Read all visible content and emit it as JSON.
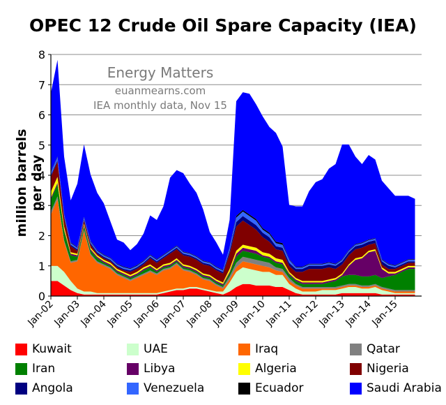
{
  "chart_data": {
    "type": "area",
    "stacked": true,
    "title": "OPEC 12 Crude Oil Spare Capacity (IEA)",
    "ylabel": "million barrels per day",
    "xlabel": "",
    "ylim": [
      0,
      8
    ],
    "yticks": [
      "0",
      "1",
      "2",
      "3",
      "4",
      "5",
      "6",
      "7",
      "8"
    ],
    "xticks": [
      "Jan-02",
      "Jan-03",
      "Jan-04",
      "Jan-05",
      "Jan-06",
      "Jan-07",
      "Jan-08",
      "Jan-09",
      "Jan-10",
      "Jan-11",
      "Jan-12",
      "Jan-13",
      "Jan-14",
      "Jan-15"
    ],
    "grid": true,
    "legend_position": "bottom",
    "annotations": [
      "Energy Matters",
      "euanmearns.com",
      "IEA monthly data, Nov 15"
    ],
    "x": [
      2002.0,
      2002.25,
      2002.5,
      2002.75,
      2003.0,
      2003.25,
      2003.5,
      2003.75,
      2004.0,
      2004.25,
      2004.5,
      2004.75,
      2005.0,
      2005.25,
      2005.5,
      2005.75,
      2006.0,
      2006.25,
      2006.5,
      2006.75,
      2007.0,
      2007.25,
      2007.5,
      2007.75,
      2008.0,
      2008.25,
      2008.5,
      2008.75,
      2009.0,
      2009.25,
      2009.5,
      2009.75,
      2010.0,
      2010.25,
      2010.5,
      2010.75,
      2011.0,
      2011.25,
      2011.5,
      2011.75,
      2012.0,
      2012.25,
      2012.5,
      2012.75,
      2013.0,
      2013.25,
      2013.5,
      2013.75,
      2014.0,
      2014.25,
      2014.5,
      2014.75,
      2015.0,
      2015.25,
      2015.5,
      2015.75
    ],
    "series": [
      {
        "name": "Kuwait",
        "color": "#ff0000",
        "values": [
          0.5,
          0.5,
          0.35,
          0.2,
          0.1,
          0.05,
          0.05,
          0.05,
          0.05,
          0.05,
          0.05,
          0.05,
          0.05,
          0.05,
          0.05,
          0.05,
          0.05,
          0.1,
          0.15,
          0.2,
          0.2,
          0.25,
          0.25,
          0.2,
          0.15,
          0.1,
          0.05,
          0.15,
          0.3,
          0.4,
          0.4,
          0.35,
          0.35,
          0.35,
          0.3,
          0.3,
          0.2,
          0.1,
          0.05,
          0.05,
          0.05,
          0.05,
          0.05,
          0.05,
          0.1,
          0.1,
          0.1,
          0.1,
          0.1,
          0.1,
          0.05,
          0.05,
          0.05,
          0.05,
          0.05,
          0.05
        ]
      },
      {
        "name": "UAE",
        "color": "#ccffcc",
        "values": [
          0.5,
          0.5,
          0.45,
          0.3,
          0.15,
          0.1,
          0.1,
          0.05,
          0.05,
          0.05,
          0.05,
          0.05,
          0.05,
          0.05,
          0.05,
          0.05,
          0.05,
          0.05,
          0.05,
          0.05,
          0.05,
          0.05,
          0.05,
          0.05,
          0.05,
          0.05,
          0.1,
          0.3,
          0.5,
          0.55,
          0.5,
          0.5,
          0.45,
          0.45,
          0.4,
          0.4,
          0.2,
          0.15,
          0.1,
          0.1,
          0.1,
          0.15,
          0.15,
          0.15,
          0.15,
          0.2,
          0.2,
          0.15,
          0.15,
          0.2,
          0.15,
          0.1,
          0.05,
          0.05,
          0.05,
          0.05
        ]
      },
      {
        "name": "Iraq",
        "color": "#ff6600",
        "values": [
          1.7,
          2.2,
          1.0,
          0.6,
          0.9,
          2.0,
          1.2,
          1.0,
          0.9,
          0.8,
          0.6,
          0.5,
          0.4,
          0.5,
          0.6,
          0.7,
          0.6,
          0.7,
          0.7,
          0.8,
          0.6,
          0.5,
          0.4,
          0.3,
          0.3,
          0.2,
          0.1,
          0.1,
          0.15,
          0.2,
          0.2,
          0.2,
          0.2,
          0.15,
          0.15,
          0.1,
          0.1,
          0.1,
          0.1,
          0.1,
          0.1,
          0.05,
          0.05,
          0.05,
          0.05,
          0.05,
          0.05,
          0.05,
          0.05,
          0.05,
          0.05,
          0.05,
          0.05,
          0.05,
          0.05,
          0.05
        ]
      },
      {
        "name": "Qatar",
        "color": "#808080",
        "values": [
          0.1,
          0.1,
          0.05,
          0.05,
          0.05,
          0.05,
          0.05,
          0.05,
          0.05,
          0.05,
          0.05,
          0.05,
          0.05,
          0.05,
          0.05,
          0.05,
          0.05,
          0.05,
          0.05,
          0.05,
          0.05,
          0.05,
          0.05,
          0.05,
          0.05,
          0.05,
          0.05,
          0.1,
          0.15,
          0.15,
          0.15,
          0.15,
          0.15,
          0.15,
          0.1,
          0.1,
          0.1,
          0.05,
          0.05,
          0.05,
          0.05,
          0.05,
          0.05,
          0.05,
          0.05,
          0.05,
          0.05,
          0.05,
          0.05,
          0.05,
          0.05,
          0.05,
          0.05,
          0.05,
          0.05,
          0.05
        ]
      },
      {
        "name": "Iran",
        "color": "#008000",
        "values": [
          0.4,
          0.4,
          0.3,
          0.2,
          0.1,
          0.1,
          0.1,
          0.1,
          0.05,
          0.05,
          0.05,
          0.05,
          0.05,
          0.05,
          0.1,
          0.1,
          0.05,
          0.05,
          0.05,
          0.05,
          0.05,
          0.05,
          0.05,
          0.05,
          0.05,
          0.05,
          0.05,
          0.1,
          0.2,
          0.2,
          0.2,
          0.2,
          0.15,
          0.15,
          0.15,
          0.15,
          0.1,
          0.1,
          0.1,
          0.1,
          0.1,
          0.1,
          0.15,
          0.2,
          0.3,
          0.3,
          0.3,
          0.3,
          0.3,
          0.3,
          0.3,
          0.4,
          0.5,
          0.6,
          0.7,
          0.7
        ]
      },
      {
        "name": "Libya",
        "color": "#660066",
        "values": [
          0.05,
          0.05,
          0.05,
          0.05,
          0.05,
          0.05,
          0.05,
          0.05,
          0.05,
          0.05,
          0.05,
          0.05,
          0.05,
          0.05,
          0.05,
          0.05,
          0.05,
          0.05,
          0.05,
          0.05,
          0.05,
          0.05,
          0.05,
          0.05,
          0.05,
          0.05,
          0.05,
          0.05,
          0.1,
          0.1,
          0.1,
          0.1,
          0.05,
          0.05,
          0.05,
          0.05,
          0.05,
          0.05,
          0.05,
          0.05,
          0.05,
          0.05,
          0.05,
          0.05,
          0.05,
          0.3,
          0.5,
          0.6,
          0.8,
          0.8,
          0.3,
          0.1,
          0.05,
          0.05,
          0.05,
          0.05
        ]
      },
      {
        "name": "Algeria",
        "color": "#ffff00",
        "values": [
          0.2,
          0.2,
          0.1,
          0.05,
          0.05,
          0.05,
          0.05,
          0.05,
          0.05,
          0.05,
          0.05,
          0.05,
          0.05,
          0.05,
          0.05,
          0.05,
          0.05,
          0.05,
          0.05,
          0.05,
          0.05,
          0.05,
          0.05,
          0.05,
          0.05,
          0.05,
          0.05,
          0.1,
          0.1,
          0.1,
          0.1,
          0.1,
          0.1,
          0.1,
          0.1,
          0.1,
          0.05,
          0.05,
          0.05,
          0.05,
          0.05,
          0.05,
          0.05,
          0.05,
          0.05,
          0.05,
          0.05,
          0.05,
          0.05,
          0.05,
          0.05,
          0.05,
          0.05,
          0.05,
          0.05,
          0.05
        ]
      },
      {
        "name": "Nigeria",
        "color": "#800000",
        "values": [
          0.5,
          0.5,
          0.3,
          0.2,
          0.1,
          0.1,
          0.1,
          0.05,
          0.05,
          0.05,
          0.05,
          0.05,
          0.1,
          0.1,
          0.1,
          0.2,
          0.2,
          0.2,
          0.3,
          0.3,
          0.3,
          0.3,
          0.3,
          0.3,
          0.3,
          0.3,
          0.3,
          0.5,
          0.8,
          0.8,
          0.7,
          0.6,
          0.5,
          0.4,
          0.3,
          0.3,
          0.2,
          0.2,
          0.3,
          0.4,
          0.4,
          0.4,
          0.4,
          0.3,
          0.3,
          0.3,
          0.3,
          0.3,
          0.2,
          0.2,
          0.1,
          0.1,
          0.1,
          0.1,
          0.1,
          0.1
        ]
      },
      {
        "name": "Angola",
        "color": "#000080",
        "values": [
          0.05,
          0.05,
          0.05,
          0.05,
          0.05,
          0.05,
          0.05,
          0.05,
          0.05,
          0.05,
          0.05,
          0.05,
          0.05,
          0.05,
          0.05,
          0.05,
          0.05,
          0.05,
          0.05,
          0.05,
          0.05,
          0.05,
          0.05,
          0.05,
          0.05,
          0.05,
          0.05,
          0.1,
          0.15,
          0.15,
          0.15,
          0.15,
          0.15,
          0.15,
          0.1,
          0.1,
          0.1,
          0.1,
          0.1,
          0.1,
          0.1,
          0.1,
          0.1,
          0.1,
          0.1,
          0.1,
          0.1,
          0.1,
          0.1,
          0.1,
          0.1,
          0.1,
          0.05,
          0.05,
          0.05,
          0.05
        ]
      },
      {
        "name": "Venezuela",
        "color": "#3366ff",
        "values": [
          0.1,
          0.1,
          0.05,
          0.05,
          0.05,
          0.05,
          0.05,
          0.05,
          0.05,
          0.05,
          0.05,
          0.05,
          0.05,
          0.05,
          0.05,
          0.05,
          0.05,
          0.05,
          0.05,
          0.05,
          0.05,
          0.05,
          0.05,
          0.05,
          0.05,
          0.05,
          0.05,
          0.1,
          0.15,
          0.15,
          0.15,
          0.15,
          0.1,
          0.1,
          0.1,
          0.1,
          0.1,
          0.05,
          0.05,
          0.05,
          0.05,
          0.05,
          0.05,
          0.05,
          0.05,
          0.05,
          0.05,
          0.05,
          0.05,
          0.05,
          0.05,
          0.05,
          0.05,
          0.05,
          0.05,
          0.05
        ]
      },
      {
        "name": "Ecuador",
        "color": "#000000",
        "values": [
          0.02,
          0.02,
          0.02,
          0.02,
          0.02,
          0.02,
          0.02,
          0.02,
          0.02,
          0.02,
          0.02,
          0.02,
          0.02,
          0.02,
          0.02,
          0.02,
          0.02,
          0.02,
          0.02,
          0.02,
          0.02,
          0.02,
          0.02,
          0.02,
          0.02,
          0.02,
          0.02,
          0.02,
          0.05,
          0.05,
          0.05,
          0.05,
          0.05,
          0.05,
          0.05,
          0.05,
          0.02,
          0.02,
          0.02,
          0.02,
          0.02,
          0.02,
          0.02,
          0.02,
          0.02,
          0.02,
          0.02,
          0.02,
          0.02,
          0.02,
          0.02,
          0.02,
          0.02,
          0.02,
          0.02,
          0.02
        ]
      },
      {
        "name": "Saudi Arabia",
        "color": "#0000ff",
        "values": [
          2.6,
          3.2,
          1.9,
          1.4,
          2.1,
          2.4,
          2.2,
          1.9,
          1.7,
          1.2,
          0.8,
          0.8,
          0.6,
          0.7,
          0.9,
          1.3,
          1.3,
          1.6,
          2.4,
          2.5,
          2.6,
          2.3,
          2.1,
          1.7,
          1.0,
          0.8,
          0.5,
          0.9,
          3.8,
          3.9,
          4.0,
          3.8,
          3.7,
          3.5,
          3.6,
          3.2,
          1.8,
          2.0,
          2.0,
          2.4,
          2.7,
          2.8,
          3.1,
          3.3,
          3.8,
          3.5,
          2.9,
          2.6,
          2.8,
          2.6,
          2.6,
          2.5,
          2.3,
          2.2,
          2.1,
          2.0
        ]
      }
    ]
  }
}
